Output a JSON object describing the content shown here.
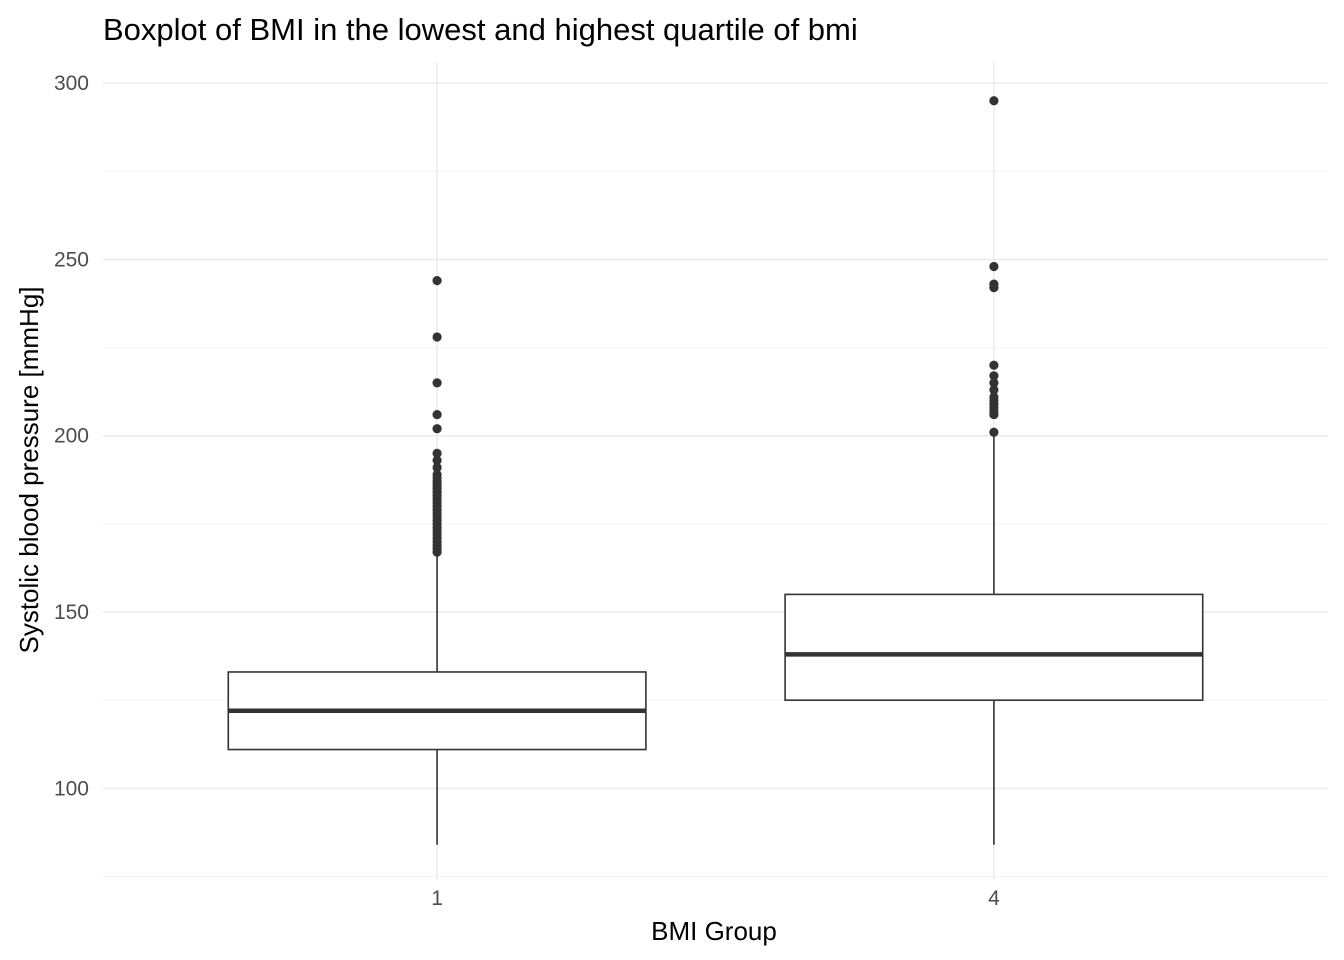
{
  "chart_data": {
    "type": "boxplot",
    "title": "Boxplot of BMI in the lowest and highest quartile of bmi",
    "xlabel": "BMI Group",
    "ylabel": "Systolic blood pressure [mmHg]",
    "ylim": [
      74,
      306
    ],
    "y_ticks": [
      100,
      150,
      200,
      250,
      300
    ],
    "y_minor_ticks": [
      75,
      125,
      175,
      225,
      275
    ],
    "grid": true,
    "legend": "none",
    "colors": {
      "box_outline": "#333333",
      "box_fill": "#ffffff",
      "grid_major": "#ebebeb",
      "grid_minor": "#f2f2f2",
      "tick_label": "#4d4d4d"
    },
    "categories": [
      "1",
      "4"
    ],
    "boxes": [
      {
        "category": "1",
        "whisker_low": 84,
        "q1": 111,
        "median": 122,
        "q3": 133,
        "whisker_high": 166,
        "outliers": [
          167,
          168,
          169,
          170,
          171,
          172,
          173,
          174,
          175,
          176,
          177,
          178,
          179,
          180,
          181,
          182,
          183,
          184,
          185,
          186,
          187,
          188,
          189,
          191,
          193,
          195,
          202,
          206,
          215,
          228,
          244
        ]
      },
      {
        "category": "4",
        "whisker_low": 84,
        "q1": 125,
        "median": 138,
        "q3": 155,
        "whisker_high": 200,
        "outliers": [
          201,
          206,
          207,
          208,
          209,
          210,
          211,
          213,
          215,
          217,
          220,
          242,
          243,
          248,
          295
        ]
      }
    ]
  }
}
